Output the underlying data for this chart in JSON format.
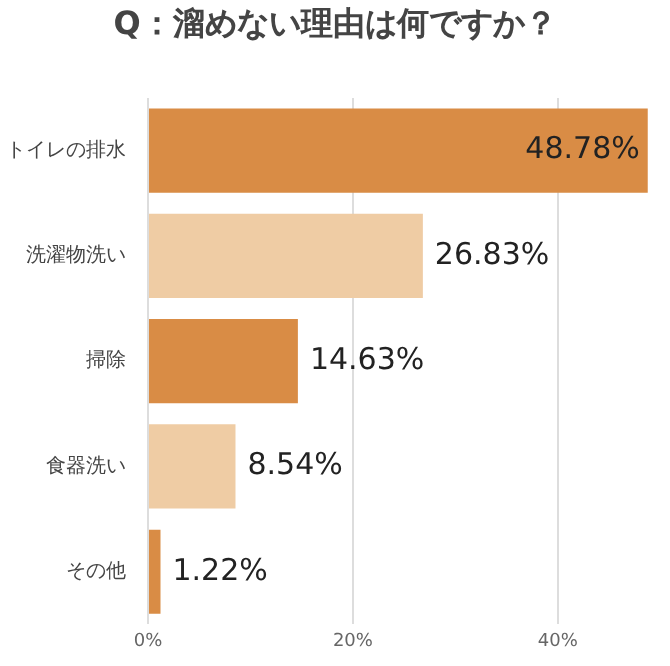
{
  "chart_data": {
    "type": "bar",
    "orientation": "horizontal",
    "title": "Q：溜めない理由は何ですか？",
    "categories": [
      "トイレの排水",
      "洗濯物洗い",
      "掃除",
      "食器洗い",
      "その他"
    ],
    "values": [
      48.78,
      26.83,
      14.63,
      8.54,
      1.22
    ],
    "colors": [
      "#d98c45",
      "#efcca4",
      "#d98c45",
      "#efcca4",
      "#d98c45"
    ],
    "value_labels": [
      "48.78%",
      "26.83%",
      "14.63%",
      "8.54%",
      "1.22%"
    ],
    "xlim": [
      0,
      49
    ],
    "xticks": [
      {
        "value": 0,
        "label": "0%"
      },
      {
        "value": 20,
        "label": "20%"
      },
      {
        "value": 40,
        "label": "40%"
      }
    ],
    "grid": "x",
    "legend": false
  }
}
